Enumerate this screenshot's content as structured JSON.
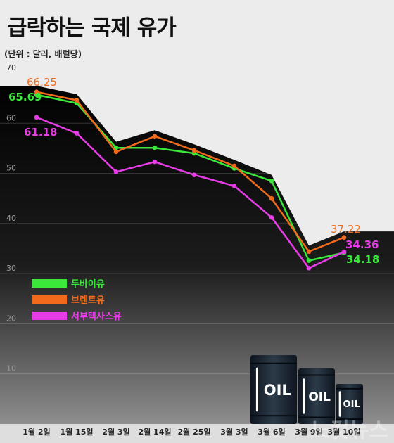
{
  "title": "급락하는 국제 유가",
  "unit_label": "(단위 : 달러, 배럴당)",
  "chart_data": {
    "type": "line",
    "categories": [
      "1월 2일",
      "1월 15일",
      "2월 3일",
      "2월 14일",
      "2월 25일",
      "3월 3일",
      "3월 6일",
      "3월 9일",
      "3월 10일"
    ],
    "ylim": [
      0,
      70
    ],
    "yticks": [
      10,
      20,
      30,
      40,
      50,
      60,
      70
    ],
    "grid": true,
    "legend_position": "lower-left",
    "series": [
      {
        "name": "두바이유",
        "color": "#39e839",
        "values": [
          65.69,
          64.0,
          55.1,
          55.1,
          54.0,
          51.0,
          48.5,
          32.6,
          34.18
        ],
        "start_label": "65.69",
        "end_label": "34.18"
      },
      {
        "name": "브렌트유",
        "color": "#f26b1d",
        "values": [
          66.25,
          64.6,
          54.3,
          57.4,
          54.6,
          51.5,
          45.0,
          34.4,
          37.22
        ],
        "start_label": "66.25",
        "end_label": "37.22"
      },
      {
        "name": "서부텍사스유",
        "color": "#e83ce8",
        "values": [
          61.18,
          58.0,
          50.3,
          52.3,
          49.7,
          47.5,
          41.2,
          31.1,
          34.36
        ],
        "start_label": "61.18",
        "end_label": "34.36"
      }
    ]
  },
  "barrels": [
    {
      "label": "OIL"
    },
    {
      "label": "OIL"
    },
    {
      "label": "OIL"
    }
  ],
  "watermark": "노컷뉴스"
}
